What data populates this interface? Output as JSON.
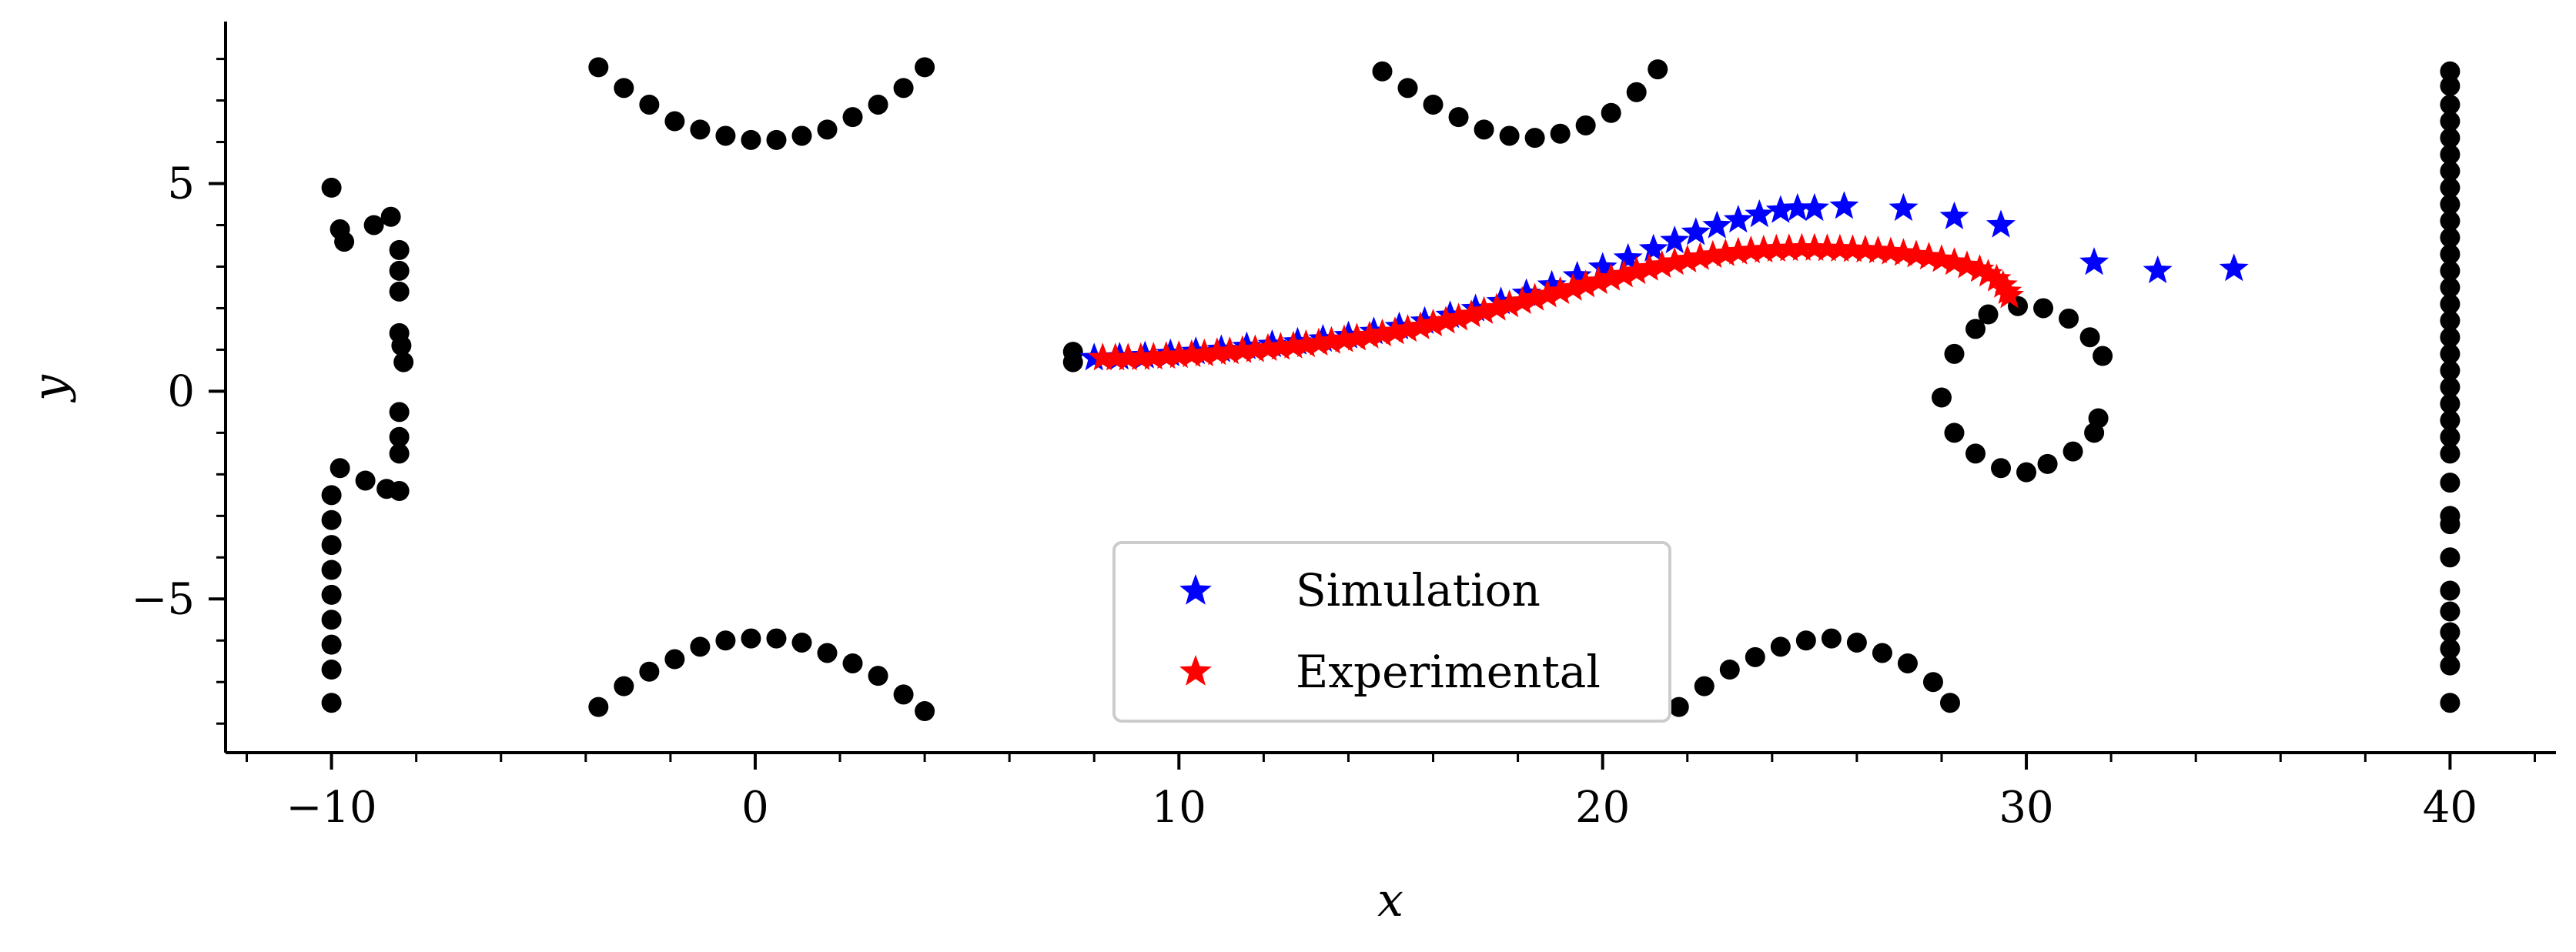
{
  "chart_data": {
    "type": "scatter",
    "title": "",
    "xlabel": "x",
    "ylabel": "y",
    "xlim": [
      -12.5,
      42.5
    ],
    "ylim": [
      -8.7,
      8.9
    ],
    "xticks": [
      -10,
      0,
      10,
      20,
      30,
      40
    ],
    "yticks": [
      -5,
      0,
      5
    ],
    "xtick_labels": [
      "−10",
      "0",
      "10",
      "20",
      "30",
      "40"
    ],
    "ytick_labels": [
      "−5",
      "0",
      "5"
    ],
    "x_minor_step": 2,
    "y_minor_step": 1,
    "grid": false,
    "legend_position": "lower-center",
    "colors": {
      "obstacles": "#000000",
      "simulation": "#0000ff",
      "experimental": "#ff0000",
      "axis": "#000000"
    },
    "obstacles": {
      "points": [
        [
          -10.0,
          4.9
        ],
        [
          -9.8,
          3.9
        ],
        [
          -9.7,
          3.6
        ],
        [
          -9.0,
          4.0
        ],
        [
          -8.6,
          4.2
        ],
        [
          -8.4,
          3.4
        ],
        [
          -8.4,
          2.9
        ],
        [
          -8.4,
          2.4
        ],
        [
          -8.4,
          1.4
        ],
        [
          -8.35,
          1.1
        ],
        [
          -8.3,
          0.7
        ],
        [
          -8.4,
          -0.5
        ],
        [
          -8.4,
          -1.1
        ],
        [
          -8.4,
          -1.5
        ],
        [
          -8.4,
          -2.4
        ],
        [
          -8.7,
          -2.35
        ],
        [
          -9.2,
          -2.15
        ],
        [
          -9.8,
          -1.85
        ],
        [
          -10.0,
          -2.5
        ],
        [
          -10.0,
          -3.1
        ],
        [
          -10.0,
          -3.7
        ],
        [
          -10.0,
          -4.3
        ],
        [
          -10.0,
          -4.9
        ],
        [
          -10.0,
          -5.5
        ],
        [
          -10.0,
          -6.1
        ],
        [
          -10.0,
          -6.7
        ],
        [
          -10.0,
          -7.5
        ],
        [
          -3.7,
          7.8
        ],
        [
          -3.1,
          7.3
        ],
        [
          -2.5,
          6.9
        ],
        [
          -1.9,
          6.5
        ],
        [
          -1.3,
          6.3
        ],
        [
          -0.7,
          6.15
        ],
        [
          -0.1,
          6.05
        ],
        [
          0.5,
          6.05
        ],
        [
          1.1,
          6.15
        ],
        [
          1.7,
          6.3
        ],
        [
          2.3,
          6.6
        ],
        [
          2.9,
          6.9
        ],
        [
          3.5,
          7.3
        ],
        [
          4.0,
          7.8
        ],
        [
          -3.7,
          -7.6
        ],
        [
          -3.1,
          -7.1
        ],
        [
          -2.5,
          -6.75
        ],
        [
          -1.9,
          -6.45
        ],
        [
          -1.3,
          -6.15
        ],
        [
          -0.7,
          -6.0
        ],
        [
          -0.1,
          -5.95
        ],
        [
          0.5,
          -5.95
        ],
        [
          1.1,
          -6.05
        ],
        [
          1.7,
          -6.3
        ],
        [
          2.3,
          -6.55
        ],
        [
          2.9,
          -6.85
        ],
        [
          3.5,
          -7.3
        ],
        [
          4.0,
          -7.7
        ],
        [
          14.8,
          7.7
        ],
        [
          15.4,
          7.3
        ],
        [
          16.0,
          6.9
        ],
        [
          16.6,
          6.6
        ],
        [
          17.2,
          6.3
        ],
        [
          17.8,
          6.15
        ],
        [
          18.4,
          6.1
        ],
        [
          19.0,
          6.2
        ],
        [
          19.6,
          6.4
        ],
        [
          20.2,
          6.7
        ],
        [
          20.8,
          7.2
        ],
        [
          21.3,
          7.75
        ],
        [
          21.8,
          -7.6
        ],
        [
          22.4,
          -7.1
        ],
        [
          23.0,
          -6.7
        ],
        [
          23.6,
          -6.4
        ],
        [
          24.2,
          -6.15
        ],
        [
          24.8,
          -6.0
        ],
        [
          25.4,
          -5.95
        ],
        [
          26.0,
          -6.05
        ],
        [
          26.6,
          -6.3
        ],
        [
          27.2,
          -6.55
        ],
        [
          27.8,
          -7.0
        ],
        [
          28.2,
          -7.5
        ],
        [
          7.5,
          0.95
        ],
        [
          7.5,
          0.7
        ],
        [
          29.8,
          2.05
        ],
        [
          30.4,
          2.0
        ],
        [
          31.0,
          1.75
        ],
        [
          31.5,
          1.3
        ],
        [
          31.8,
          0.85
        ],
        [
          31.7,
          -0.65
        ],
        [
          31.6,
          -1.0
        ],
        [
          31.1,
          -1.45
        ],
        [
          30.5,
          -1.75
        ],
        [
          30.0,
          -1.95
        ],
        [
          29.4,
          -1.85
        ],
        [
          28.8,
          -1.5
        ],
        [
          28.3,
          -1.0
        ],
        [
          28.0,
          -0.15
        ],
        [
          28.3,
          0.9
        ],
        [
          28.8,
          1.5
        ],
        [
          29.1,
          1.85
        ],
        [
          40.0,
          7.7
        ],
        [
          40.0,
          7.35
        ],
        [
          40.0,
          6.9
        ],
        [
          40.0,
          6.5
        ],
        [
          40.0,
          6.1
        ],
        [
          40.0,
          5.7
        ],
        [
          40.0,
          5.3
        ],
        [
          40.0,
          4.9
        ],
        [
          40.0,
          4.5
        ],
        [
          40.0,
          4.1
        ],
        [
          40.0,
          3.7
        ],
        [
          40.0,
          3.3
        ],
        [
          40.0,
          2.9
        ],
        [
          40.0,
          2.5
        ],
        [
          40.0,
          2.1
        ],
        [
          40.0,
          1.7
        ],
        [
          40.0,
          1.3
        ],
        [
          40.0,
          0.9
        ],
        [
          40.0,
          0.5
        ],
        [
          40.0,
          0.1
        ],
        [
          40.0,
          -0.3
        ],
        [
          40.0,
          -0.7
        ],
        [
          40.0,
          -1.1
        ],
        [
          40.0,
          -1.5
        ],
        [
          40.0,
          -2.2
        ],
        [
          40.0,
          -3.0
        ],
        [
          40.0,
          -3.2
        ],
        [
          40.0,
          -4.0
        ],
        [
          40.0,
          -4.8
        ],
        [
          40.0,
          -5.3
        ],
        [
          40.0,
          -5.8
        ],
        [
          40.0,
          -6.2
        ],
        [
          40.0,
          -6.6
        ],
        [
          40.0,
          -7.5
        ]
      ]
    },
    "series": [
      {
        "name": "Simulation",
        "marker": "star",
        "x": [
          8.0,
          8.6,
          9.2,
          9.8,
          10.4,
          11.0,
          11.6,
          12.2,
          12.8,
          13.4,
          14.0,
          14.6,
          15.2,
          15.8,
          16.4,
          17.0,
          17.6,
          18.2,
          18.8,
          19.4,
          20.0,
          20.6,
          21.2,
          21.7,
          22.2,
          22.7,
          23.2,
          23.7,
          24.2,
          24.6,
          25.0,
          25.7,
          27.1,
          28.3,
          29.4,
          31.6,
          33.1,
          34.9
        ],
        "y": [
          0.8,
          0.82,
          0.85,
          0.9,
          0.95,
          1.0,
          1.07,
          1.12,
          1.18,
          1.25,
          1.33,
          1.43,
          1.55,
          1.68,
          1.82,
          1.98,
          2.15,
          2.35,
          2.55,
          2.77,
          2.98,
          3.2,
          3.42,
          3.62,
          3.82,
          3.98,
          4.12,
          4.25,
          4.35,
          4.4,
          4.4,
          4.45,
          4.4,
          4.2,
          4.0,
          3.1,
          2.9,
          2.95
        ]
      },
      {
        "name": "Experimental",
        "marker": "star",
        "x": [
          8.2,
          8.5,
          8.8,
          9.1,
          9.4,
          9.7,
          10.0,
          10.3,
          10.6,
          10.9,
          11.2,
          11.5,
          11.8,
          12.1,
          12.4,
          12.7,
          13.0,
          13.3,
          13.6,
          13.9,
          14.2,
          14.5,
          14.8,
          15.1,
          15.4,
          15.7,
          16.0,
          16.3,
          16.6,
          16.9,
          17.2,
          17.5,
          17.8,
          18.1,
          18.4,
          18.7,
          19.0,
          19.3,
          19.6,
          19.9,
          20.2,
          20.5,
          20.8,
          21.1,
          21.4,
          21.7,
          22.0,
          22.3,
          22.6,
          22.9,
          23.2,
          23.5,
          23.8,
          24.1,
          24.4,
          24.7,
          25.0,
          25.3,
          25.6,
          25.9,
          26.2,
          26.5,
          26.8,
          27.1,
          27.4,
          27.7,
          28.0,
          28.3,
          28.6,
          28.9,
          29.1,
          29.3,
          29.45,
          29.55,
          29.6
        ],
        "y": [
          0.8,
          0.8,
          0.8,
          0.81,
          0.82,
          0.84,
          0.86,
          0.88,
          0.9,
          0.93,
          0.95,
          0.98,
          1.0,
          1.03,
          1.06,
          1.09,
          1.12,
          1.16,
          1.2,
          1.24,
          1.28,
          1.33,
          1.38,
          1.43,
          1.49,
          1.55,
          1.62,
          1.69,
          1.76,
          1.84,
          1.92,
          2.0,
          2.08,
          2.16,
          2.24,
          2.32,
          2.4,
          2.48,
          2.56,
          2.64,
          2.72,
          2.8,
          2.88,
          2.96,
          3.03,
          3.1,
          3.16,
          3.22,
          3.27,
          3.31,
          3.35,
          3.38,
          3.4,
          3.42,
          3.43,
          3.44,
          3.44,
          3.43,
          3.42,
          3.41,
          3.4,
          3.38,
          3.35,
          3.32,
          3.28,
          3.23,
          3.17,
          3.1,
          3.02,
          2.93,
          2.82,
          2.7,
          2.55,
          2.4,
          2.3
        ]
      }
    ]
  }
}
